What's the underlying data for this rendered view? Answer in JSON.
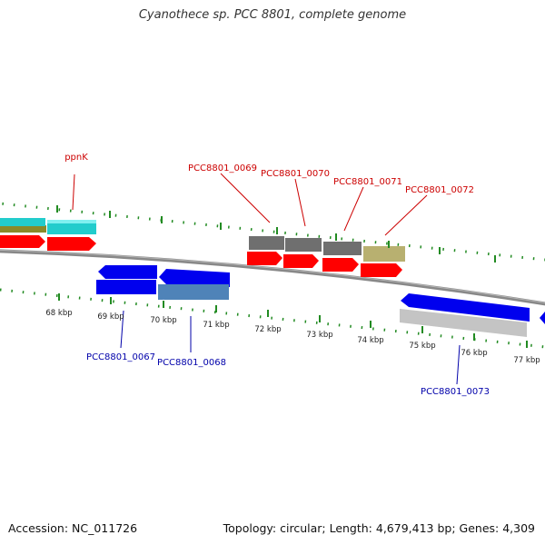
{
  "title": "Cyanothece sp. PCC 8801, complete genome",
  "footer": {
    "accession": "Accession: NC_011726",
    "summary": "Topology: circular; Length: 4,679,413 bp; Genes: 4,309"
  },
  "colors": {
    "forward_label": "#cc0000",
    "reverse_label": "#0000aa",
    "backbone": "#888888",
    "tick": "#228b22",
    "cds_red": "#ff0000",
    "cds_blue": "#0000ee",
    "cyan": "#22cccc",
    "olive": "#8a8a2a",
    "gray": "#6f6f6f",
    "khaki": "#b8b070",
    "steel": "#4f83b8",
    "silver": "#c4c4c4"
  },
  "scale": {
    "unit": "kbp",
    "labels": [
      "68 kbp",
      "69 kbp",
      "70 kbp",
      "71 kbp",
      "72 kbp",
      "73 kbp",
      "74 kbp",
      "75 kbp",
      "76 kbp",
      "77 kbp"
    ]
  },
  "features": {
    "forward_labels": [
      "ppnK",
      "PCC8801_0069",
      "PCC8801_0070",
      "PCC8801_0071",
      "PCC8801_0072"
    ],
    "reverse_labels": [
      "PCC8801_0067",
      "PCC8801_0068",
      "PCC8801_0073"
    ]
  }
}
